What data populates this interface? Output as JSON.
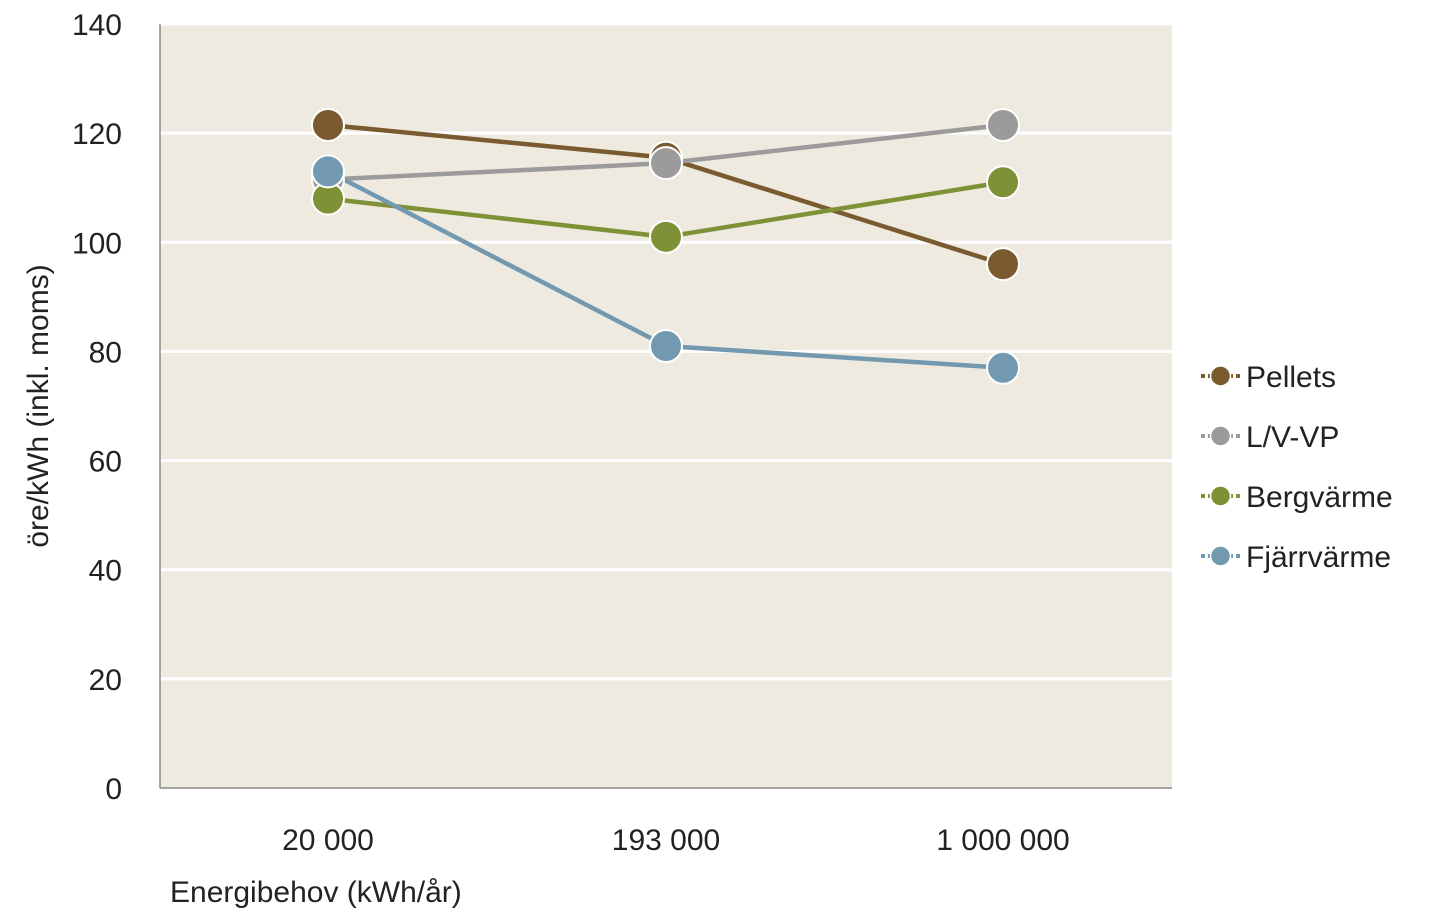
{
  "chart_data": {
    "type": "line",
    "categories": [
      "20 000",
      "193 000",
      "1 000 000"
    ],
    "xlabel": "Energibehov (kWh/år)",
    "ylabel": "öre/kWh (inkl. moms)",
    "ylim": [
      0,
      140
    ],
    "yticks": [
      0,
      20,
      40,
      60,
      80,
      100,
      120,
      140
    ],
    "grid": true,
    "plot_background": "#EEEAE0",
    "gridline_color": "#FFFFFF",
    "legend_position": "right",
    "series": [
      {
        "name": "Pellets",
        "color": "#7A5A2F",
        "values": [
          121.5,
          115.5,
          96
        ]
      },
      {
        "name": "L/V-VP",
        "color": "#9B9B9B",
        "values": [
          111.5,
          114.5,
          121.5
        ]
      },
      {
        "name": "Bergvärme",
        "color": "#7F9136",
        "values": [
          108,
          101,
          111
        ]
      },
      {
        "name": "Fjärrvärme",
        "color": "#7299B0",
        "values": [
          113,
          81,
          77
        ]
      }
    ]
  }
}
